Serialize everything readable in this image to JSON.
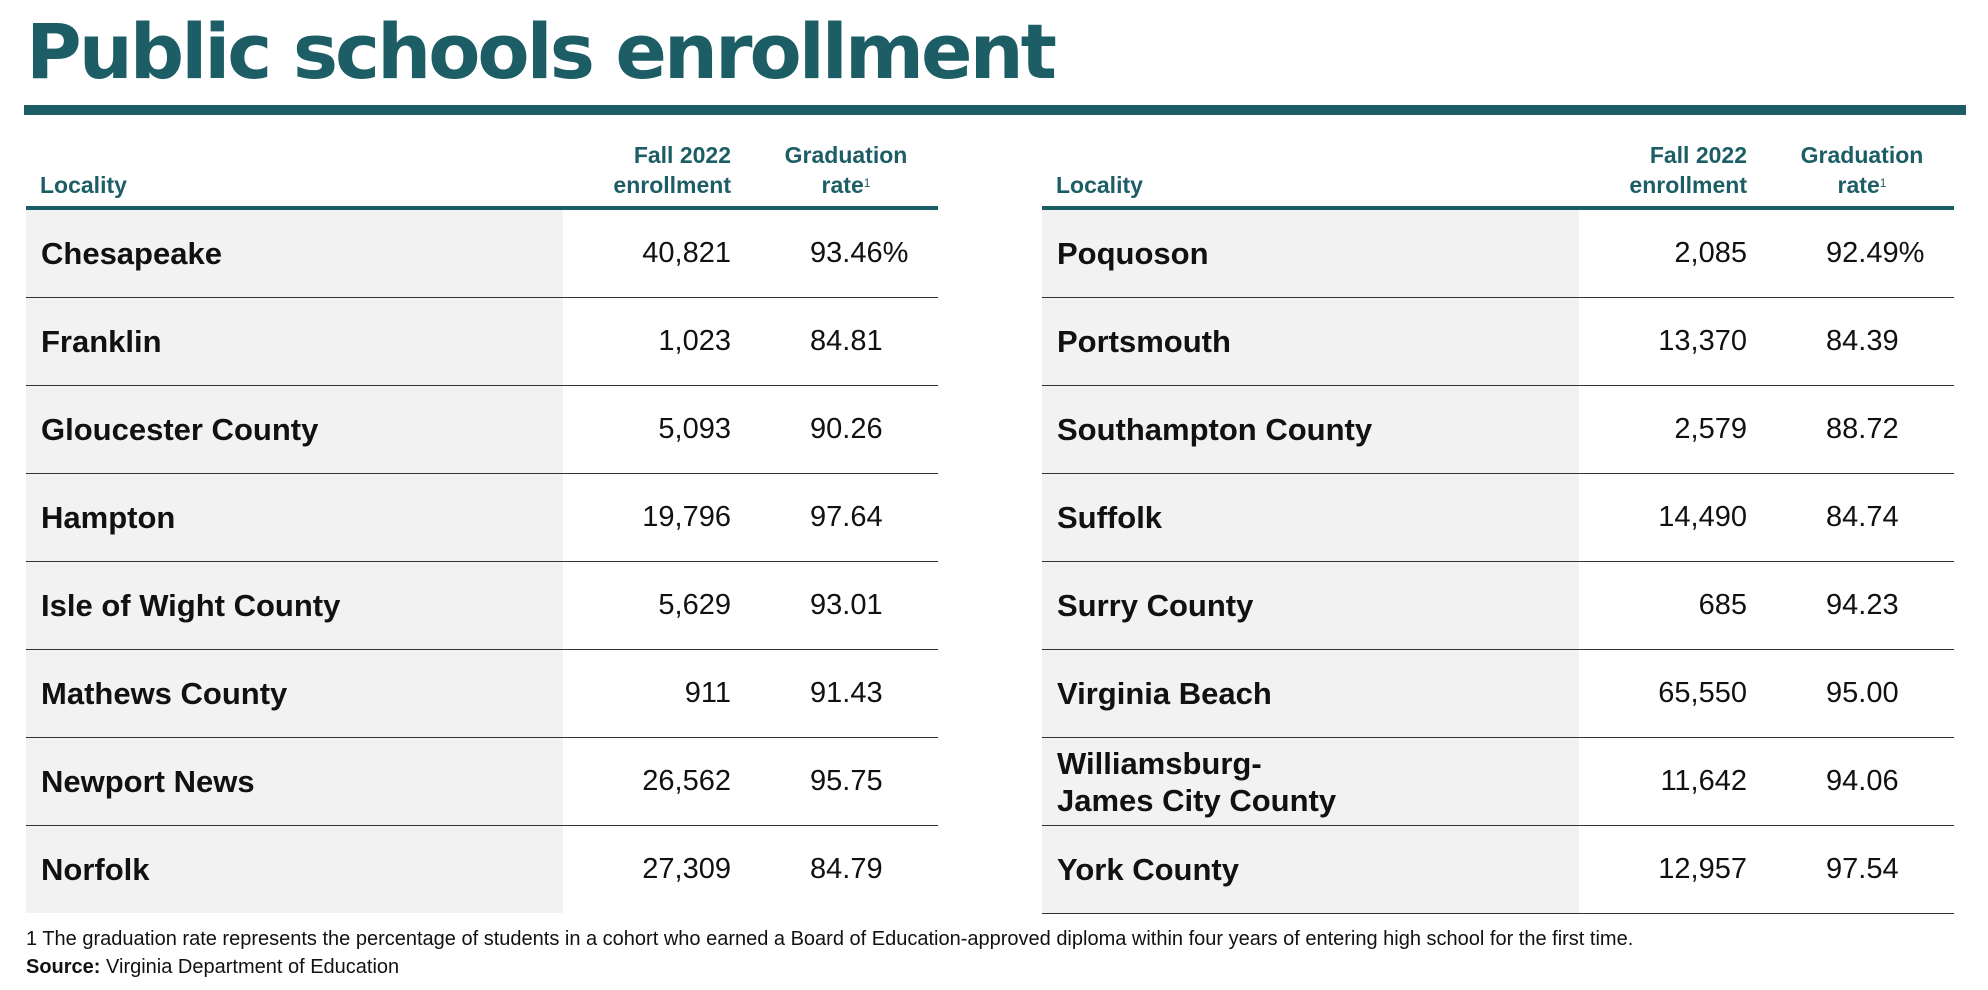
{
  "title": "Public schools enrollment",
  "columns": {
    "locality": "Locality",
    "enrollment_line1": "Fall 2022",
    "enrollment_line2": "enrollment",
    "grad_line1": "Graduation",
    "grad_line2": "rate",
    "grad_sup": "1"
  },
  "left_rows": [
    {
      "locality": "Chesapeake",
      "enrollment": "40,821",
      "grad": "93.46%"
    },
    {
      "locality": "Franklin",
      "enrollment": "1,023",
      "grad": "84.81"
    },
    {
      "locality": "Gloucester County",
      "enrollment": "5,093",
      "grad": "90.26"
    },
    {
      "locality": "Hampton",
      "enrollment": "19,796",
      "grad": "97.64"
    },
    {
      "locality": "Isle of Wight County",
      "enrollment": "5,629",
      "grad": "93.01"
    },
    {
      "locality": "Mathews County",
      "enrollment": "911",
      "grad": "91.43"
    },
    {
      "locality": "Newport News",
      "enrollment": "26,562",
      "grad": "95.75"
    },
    {
      "locality": "Norfolk",
      "enrollment": "27,309",
      "grad": "84.79"
    }
  ],
  "right_rows": [
    {
      "locality": "Poquoson",
      "enrollment": "2,085",
      "grad": "92.49%"
    },
    {
      "locality": "Portsmouth",
      "enrollment": "13,370",
      "grad": "84.39"
    },
    {
      "locality": "Southampton County",
      "enrollment": "2,579",
      "grad": "88.72"
    },
    {
      "locality": "Suffolk",
      "enrollment": "14,490",
      "grad": "84.74"
    },
    {
      "locality": "Surry County",
      "enrollment": "685",
      "grad": "94.23"
    },
    {
      "locality": "Virginia Beach",
      "enrollment": "65,550",
      "grad": "95.00"
    },
    {
      "locality": "Williamsburg-\nJames City County",
      "enrollment": "11,642",
      "grad": "94.06"
    },
    {
      "locality": "York County",
      "enrollment": "12,957",
      "grad": "97.54"
    }
  ],
  "footnote": "1 The graduation rate represents the percentage of students in a cohort who earned a Board of Education-approved diploma within four years of entering high school for the first time.",
  "source_label": "Source:",
  "source_text": " Virginia Department of Education"
}
